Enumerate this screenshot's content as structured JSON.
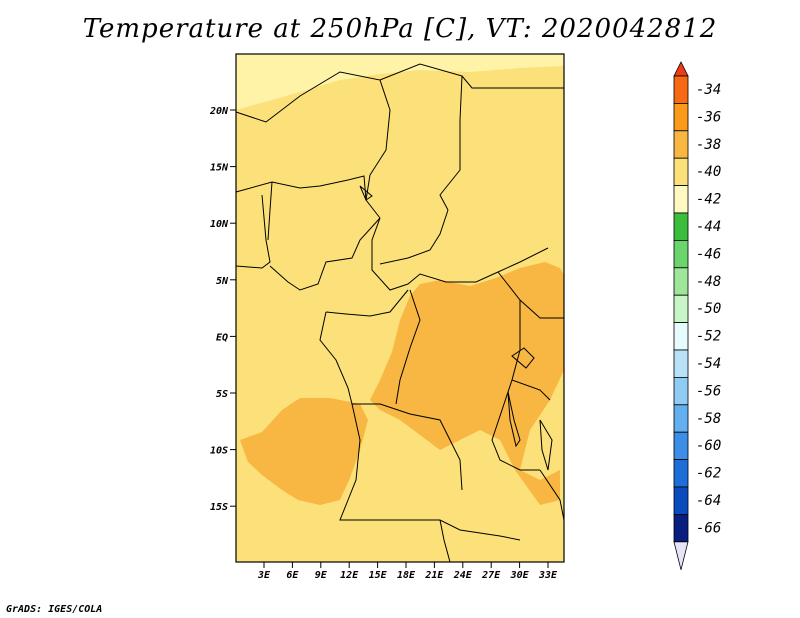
{
  "title": "Temperature at 250hPa [C], VT: 2020042812",
  "credit": "GrADS: IGES/COLA",
  "map": {
    "lat_labels": [
      "20N",
      "15N",
      "10N",
      "5N",
      "EQ",
      "5S",
      "10S",
      "15S"
    ],
    "lon_labels": [
      "3E",
      "6E",
      "9E",
      "12E",
      "15E",
      "18E",
      "21E",
      "24E",
      "27E",
      "30E",
      "33E"
    ],
    "colors": {
      "background_fill": "#fce17a",
      "north_band": "#fff3a8",
      "warm_region": "#f8b643",
      "border": "#000000"
    }
  },
  "colorbar": {
    "labels": [
      "-34",
      "-36",
      "-38",
      "-40",
      "-42",
      "-44",
      "-46",
      "-48",
      "-50",
      "-52",
      "-54",
      "-56",
      "-58",
      "-60",
      "-62",
      "-64",
      "-66"
    ],
    "top_color": "#f03c14",
    "bottom_color": "#e8e4f8",
    "colors": [
      "#f56a12",
      "#f99a1a",
      "#f8b643",
      "#fce17a",
      "#fff8c0",
      "#3cbe3c",
      "#6cd46c",
      "#9ee69a",
      "#c8f5c8",
      "#e6fbfb",
      "#b9e2f9",
      "#90cbf4",
      "#64aff0",
      "#3c8ee6",
      "#1e6ed9",
      "#0a4bbd",
      "#0a1e82"
    ]
  }
}
